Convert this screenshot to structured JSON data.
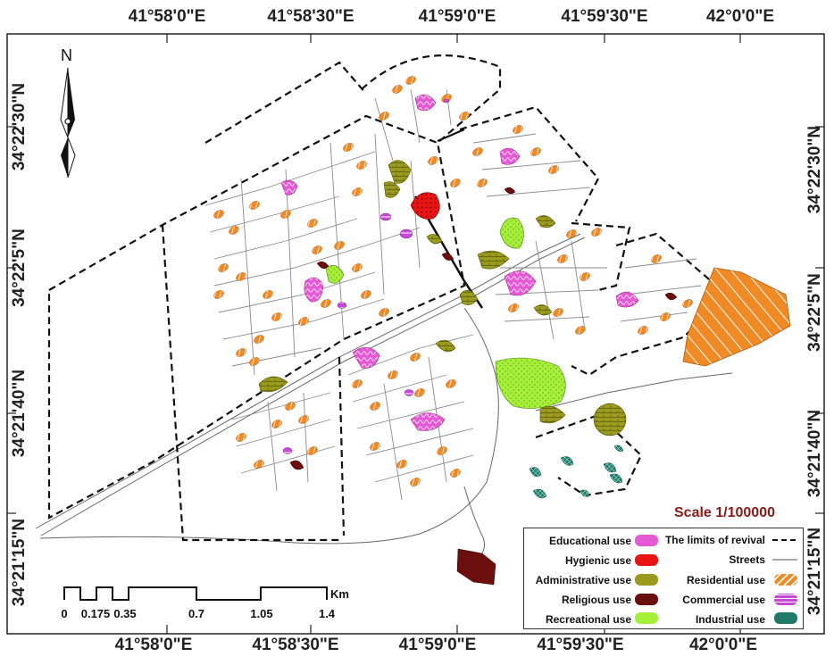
{
  "map": {
    "scale_text": "Scale 1/100000",
    "north_label": "N",
    "longitude_labels_top": [
      "41°58'0\"E",
      "41°58'30\"E",
      "41°59'0\"E",
      "41°59'30\"E",
      "42°0'0\"E"
    ],
    "longitude_labels_bottom": [
      "41°58'0\"E",
      "41°58'30\"E",
      "41°59'0\"E",
      "41°59'30\"E",
      "42°0'0\"E"
    ],
    "latitude_labels_left": [
      "34°22'30\"N",
      "34°22'5\"N",
      "34°21'40\"N",
      "34°21'15\"N"
    ],
    "latitude_labels_right": [
      "34°22'30\"N",
      "34°22'5\"N",
      "34°21'40\"N",
      "34°21'15\"N"
    ],
    "scalebar": {
      "unit": "Km",
      "ticks": [
        "0",
        "0.175",
        "0.35",
        "0.7",
        "1.05",
        "1.4"
      ]
    }
  },
  "legend": {
    "left_items": [
      {
        "label": "Educational use",
        "color": "#e659d4",
        "icon": "educational-symbol"
      },
      {
        "label": "Hygienic use",
        "color": "#e81414",
        "icon": "hygienic-symbol"
      },
      {
        "label": "Administrative use",
        "color": "#9a9a1e",
        "icon": "administrative-symbol"
      },
      {
        "label": "Religious use",
        "color": "#6b0e0e",
        "icon": "religious-symbol"
      },
      {
        "label": "Recreational use",
        "color": "#a6f03a",
        "icon": "recreational-symbol"
      }
    ],
    "right_items": [
      {
        "label": "The limits of revival",
        "color": "#111111",
        "icon": "boundary-line-symbol"
      },
      {
        "label": "Streets",
        "color": "#555555",
        "icon": "street-line-symbol"
      },
      {
        "label": "Residential use",
        "color": "#f08a24",
        "icon": "residential-symbol"
      },
      {
        "label": "Commercial use",
        "color": "#c847d8",
        "icon": "commercial-symbol"
      },
      {
        "label": "Industrial use",
        "color": "#1f7a6a",
        "icon": "industrial-symbol"
      }
    ]
  }
}
